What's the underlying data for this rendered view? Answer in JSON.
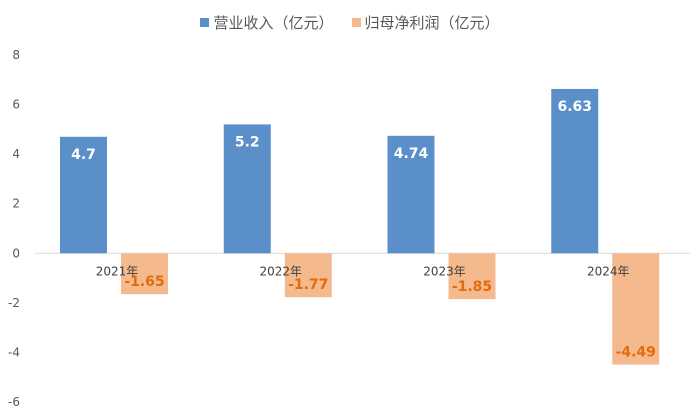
{
  "chart_data": {
    "type": "bar",
    "categories": [
      "2021年",
      "2022年",
      "2023年",
      "2024年"
    ],
    "series": [
      {
        "name": "营业收入（亿元）",
        "values": [
          4.7,
          5.2,
          4.74,
          6.63
        ],
        "color": "#5b8fc9",
        "label_color": "#ffffff"
      },
      {
        "name": "归母净利润（亿元）",
        "values": [
          -1.65,
          -1.77,
          -1.85,
          -4.49
        ],
        "color": "#f5b98e",
        "label_color": "#e26b0a"
      }
    ],
    "value_labels": [
      [
        "4.7",
        "5.2",
        "4.74",
        "6.63"
      ],
      [
        "-1.65",
        "-1.77",
        "-1.85",
        "-4.49"
      ]
    ],
    "ylim": [
      -6,
      8
    ],
    "yticks": [
      8,
      6,
      4,
      2,
      0,
      -2,
      -4,
      -6
    ],
    "grid": false,
    "legend_position": "top"
  }
}
